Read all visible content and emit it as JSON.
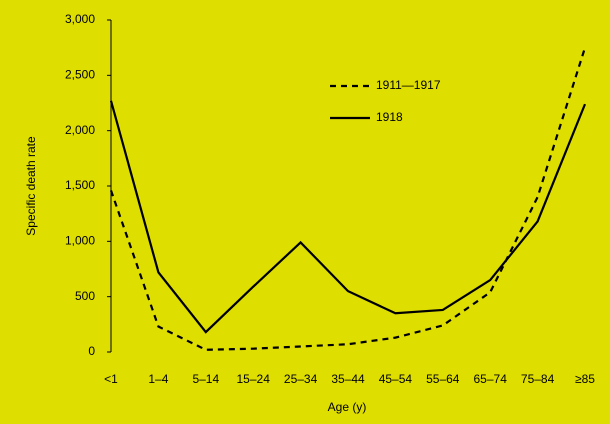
{
  "chart_data": {
    "type": "line",
    "x_label": "Age (y)",
    "y_label": "Specific death rate",
    "categories": [
      "<1",
      "1–4",
      "5–14",
      "15–24",
      "25–34",
      "35–44",
      "45–54",
      "55–64",
      "65–74",
      "75–84",
      "≥85"
    ],
    "series": [
      {
        "name": "1911—1917",
        "color": "#000000",
        "style": "dashed",
        "values": [
          1460,
          230,
          20,
          30,
          50,
          70,
          130,
          240,
          540,
          1400,
          2750
        ]
      },
      {
        "name": "1918",
        "color": "#000000",
        "style": "solid",
        "values": [
          2270,
          720,
          180,
          590,
          990,
          550,
          350,
          380,
          650,
          1180,
          2240
        ]
      }
    ],
    "ylim": [
      0,
      3000
    ],
    "yticks": [
      0,
      500,
      {
        "value": 1000,
        "label": "1,000"
      },
      {
        "value": 1500,
        "label": "1,500"
      },
      {
        "value": 2000,
        "label": "2,000"
      },
      {
        "value": 2500,
        "label": "2,500"
      },
      {
        "value": 3000,
        "label": "3,000"
      }
    ],
    "grid": false,
    "background": "#dede00"
  }
}
